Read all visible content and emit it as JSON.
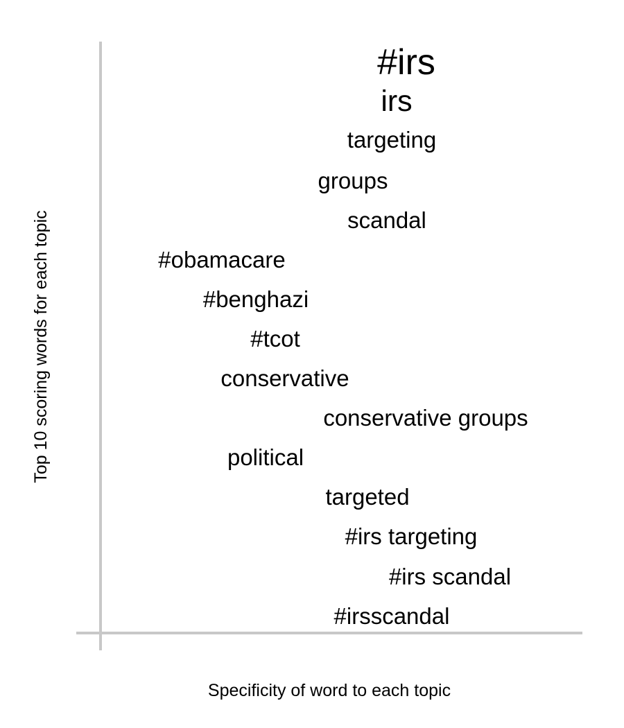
{
  "chart_data": {
    "type": "scatter",
    "title": "",
    "xlabel": "Specificity of word to each topic",
    "ylabel": "Top 10 scoring words for each topic",
    "grid": false,
    "legend": "none",
    "axis_color": "#c8c8c8",
    "text_color": "#000000",
    "words": [
      {
        "text": "#irs",
        "specificity": 0.63,
        "size": "large"
      },
      {
        "text": "irs",
        "specificity": 0.61,
        "size": "medium"
      },
      {
        "text": "targeting",
        "specificity": 0.6,
        "size": "normal"
      },
      {
        "text": "groups",
        "specificity": 0.52,
        "size": "normal"
      },
      {
        "text": "scandal",
        "specificity": 0.59,
        "size": "normal"
      },
      {
        "text": "#obamacare",
        "specificity": 0.25,
        "size": "normal"
      },
      {
        "text": "#benghazi",
        "specificity": 0.32,
        "size": "normal"
      },
      {
        "text": "#tcot",
        "specificity": 0.36,
        "size": "normal"
      },
      {
        "text": "conservative",
        "specificity": 0.38,
        "size": "normal"
      },
      {
        "text": "conservative groups",
        "specificity": 0.67,
        "size": "normal"
      },
      {
        "text": "political",
        "specificity": 0.34,
        "size": "normal"
      },
      {
        "text": "targeted",
        "specificity": 0.55,
        "size": "normal"
      },
      {
        "text": "#irs targeting",
        "specificity": 0.64,
        "size": "normal"
      },
      {
        "text": "#irs scandal",
        "specificity": 0.72,
        "size": "normal"
      },
      {
        "text": "#irsscandal",
        "specificity": 0.6,
        "size": "normal"
      }
    ]
  }
}
